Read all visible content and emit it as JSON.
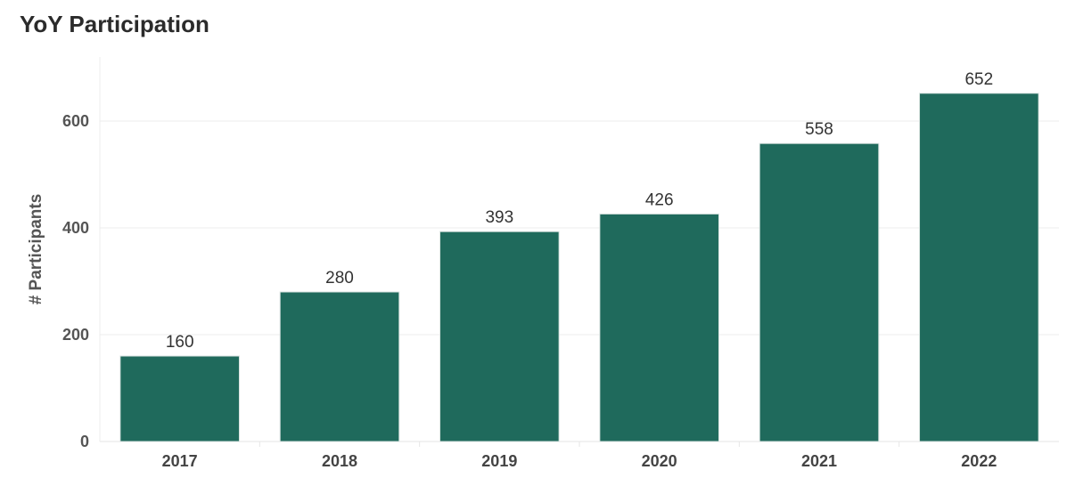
{
  "chart_data": {
    "type": "bar",
    "title": "YoY Participation",
    "xlabel": "",
    "ylabel": "# Participants",
    "categories": [
      "2017",
      "2018",
      "2019",
      "2020",
      "2021",
      "2022"
    ],
    "values": [
      160,
      280,
      393,
      426,
      558,
      652
    ],
    "ylim": [
      0,
      720
    ],
    "yticks": [
      0,
      200,
      400,
      600
    ],
    "grid": true,
    "legend": "none",
    "bar_color": "#1f6a5c"
  }
}
